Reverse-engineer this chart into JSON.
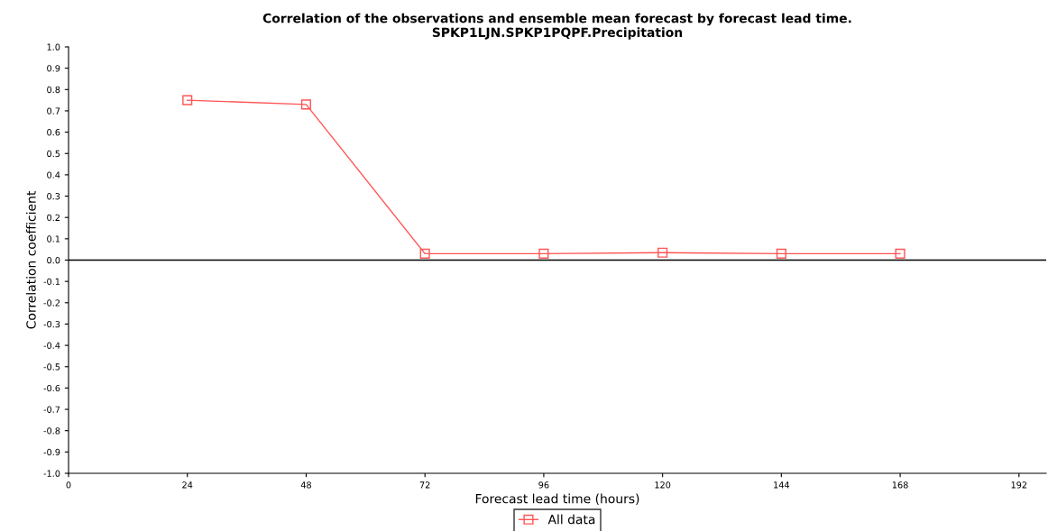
{
  "chart_data": {
    "type": "line",
    "title": "Correlation of the observations and ensemble mean forecast by forecast lead time.\nSPKP1LJN.SPKP1PQPF.Precipitation",
    "xlabel": "Forecast lead time (hours)",
    "ylabel": "Correlation coefficient",
    "x": [
      24,
      48,
      72,
      96,
      120,
      144,
      168
    ],
    "series": [
      {
        "name": "All data",
        "color": "#ff5555",
        "values": [
          0.75,
          0.73,
          0.03,
          0.03,
          0.035,
          0.03,
          0.03
        ]
      }
    ],
    "xlim": [
      0,
      197.5
    ],
    "xticks": [
      0,
      24,
      48,
      72,
      96,
      120,
      144,
      168,
      192
    ],
    "ylim": [
      -1.0,
      1.0
    ],
    "yticks": [
      {
        "value": -1.0,
        "label": "-1.0"
      },
      -0.9,
      -0.8,
      -0.7,
      -0.6,
      -0.5,
      -0.4,
      -0.3,
      -0.2,
      -0.1,
      {
        "value": 0.0,
        "label": "0.0"
      },
      0.1,
      0.2,
      0.3,
      0.4,
      0.5,
      0.6,
      0.7,
      0.8,
      0.9,
      {
        "value": 1.0,
        "label": "1.0"
      }
    ],
    "ref_lines": [
      {
        "axis": "y",
        "value": 0.0,
        "color": "#000000"
      }
    ],
    "marker": "square",
    "line_style": "solid",
    "grid": false,
    "legend": "bottom"
  }
}
